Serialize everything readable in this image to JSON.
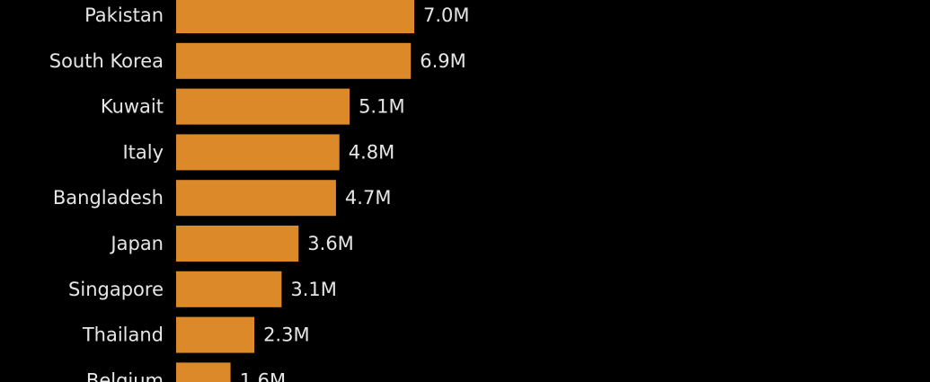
{
  "chart_data": {
    "type": "bar",
    "orientation": "horizontal",
    "unit_suffix": "M",
    "categories": [
      "Pakistan",
      "South Korea",
      "Kuwait",
      "Italy",
      "Bangladesh",
      "Japan",
      "Singapore",
      "Thailand",
      "Belgium"
    ],
    "values": [
      7.0,
      6.9,
      5.1,
      4.8,
      4.7,
      3.6,
      3.1,
      2.3,
      1.6
    ],
    "value_labels": [
      "7.0M",
      "6.9M",
      "5.1M",
      "4.8M",
      "4.7M",
      "3.6M",
      "3.1M",
      "2.3M",
      "1.6M"
    ],
    "bar_color": "#dc8a29",
    "background": "#000000",
    "text_color": "#e6e6e6",
    "title": "",
    "xlabel": "",
    "ylabel": "",
    "xlim": [
      0,
      7.0
    ],
    "grid": false
  }
}
